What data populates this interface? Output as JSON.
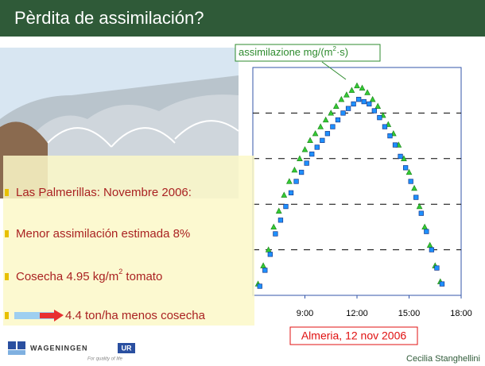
{
  "title": "Pèrdita de assimilación?",
  "bullets": [
    {
      "text": "Las Palmerillas: Novembre 2006:"
    },
    {
      "text": "Menor assimilación estimada 8%"
    },
    {
      "text": "Cosecha 4.95 kg/m",
      "sup": "2",
      "after": " tomato"
    },
    {
      "text": "4.4 ton/ha menos cosecha"
    }
  ],
  "chart_data": {
    "type": "scatter",
    "legend_label": {
      "text": "assimilazione mg/(m",
      "sup": "2",
      "after": "·s)"
    },
    "annotation": "Almeria, 12 nov 2006",
    "xlim": [
      6,
      18
    ],
    "xticks": [
      {
        "value": 9,
        "label": "9:00"
      },
      {
        "value": 12,
        "label": "12:00"
      },
      {
        "value": 15,
        "label": "15:00"
      },
      {
        "value": 18,
        "label": "18:00"
      }
    ],
    "ylim": [
      0,
      100
    ],
    "yticks": [
      20,
      40,
      60,
      80
    ],
    "grid": true,
    "series": [
      {
        "marker": "triangle",
        "color": "#33cc33",
        "x": [
          6.3,
          6.6,
          6.9,
          7.2,
          7.5,
          7.8,
          8.1,
          8.4,
          8.7,
          9.0,
          9.3,
          9.6,
          9.9,
          10.2,
          10.5,
          10.8,
          11.1,
          11.4,
          11.7,
          12.0,
          12.3,
          12.6,
          12.9,
          13.2,
          13.5,
          13.8,
          14.1,
          14.4,
          14.7,
          15.0,
          15.3,
          15.6,
          15.9,
          16.2,
          16.5,
          16.8
        ],
        "values": [
          5,
          13,
          20,
          30,
          37,
          44,
          50,
          55,
          60,
          64,
          68,
          71,
          74,
          77,
          80,
          83,
          86,
          88,
          90,
          92,
          91,
          89,
          86,
          83,
          79,
          75,
          71,
          66,
          60,
          54,
          47,
          39,
          30,
          22,
          13,
          6
        ]
      },
      {
        "marker": "square",
        "color": "#1e90ff",
        "x": [
          6.4,
          6.7,
          7.0,
          7.3,
          7.6,
          7.9,
          8.2,
          8.5,
          8.8,
          9.1,
          9.4,
          9.7,
          10.0,
          10.3,
          10.6,
          10.9,
          11.2,
          11.5,
          11.8,
          12.1,
          12.4,
          12.7,
          13.0,
          13.3,
          13.6,
          13.9,
          14.2,
          14.5,
          14.8,
          15.1,
          15.4,
          15.7,
          16.0,
          16.3,
          16.6,
          16.9
        ],
        "values": [
          4,
          11,
          18,
          27,
          33,
          39,
          45,
          50,
          54,
          58,
          62,
          65,
          68,
          71,
          74,
          77,
          80,
          82,
          84,
          86,
          85,
          84,
          81,
          78,
          74,
          70,
          66,
          61,
          56,
          50,
          43,
          36,
          28,
          20,
          12,
          5
        ]
      }
    ]
  },
  "footer": {
    "logo": "WAGENINGEN",
    "logo_ur": "UR",
    "tagline": "For quality of life",
    "author": "Cecilia Stanghellini"
  }
}
